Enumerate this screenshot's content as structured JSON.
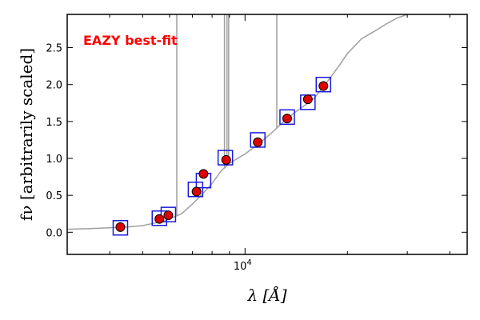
{
  "chart_data": {
    "type": "scatter",
    "x_scale": "log",
    "xlim": [
      3000,
      45000
    ],
    "ylim": [
      -0.3,
      2.95
    ],
    "xlabel": "λ [Å]",
    "ylabel": "fν [arbitrarily scaled]",
    "y_ticks": [
      "0.0",
      "0.5",
      "1.0",
      "1.5",
      "2.0",
      "2.5"
    ],
    "x_tick_labels": [
      {
        "value": 10000,
        "label": "10",
        "exponent": "4"
      }
    ],
    "annotation": {
      "text": "EAZY best-fit",
      "color": "#ff0000"
    },
    "colors": {
      "template": "#a0a0a0",
      "observed": "#dd0000",
      "model": "#1a1adc"
    },
    "template_spectrum": [
      [
        3000,
        0.04
      ],
      [
        3500,
        0.05
      ],
      [
        4000,
        0.06
      ],
      [
        4500,
        0.07
      ],
      [
        5000,
        0.09
      ],
      [
        5500,
        0.13
      ],
      [
        6000,
        0.18
      ],
      [
        6500,
        0.25
      ],
      [
        7000,
        0.38
      ],
      [
        7500,
        0.52
      ],
      [
        8000,
        0.66
      ],
      [
        8500,
        0.83
      ],
      [
        9000,
        0.93
      ],
      [
        9500,
        1.0
      ],
      [
        10000,
        1.06
      ],
      [
        11000,
        1.2
      ],
      [
        12000,
        1.35
      ],
      [
        13000,
        1.5
      ],
      [
        14000,
        1.62
      ],
      [
        15000,
        1.72
      ],
      [
        16000,
        1.82
      ],
      [
        17000,
        1.97
      ],
      [
        18000,
        2.12
      ],
      [
        19000,
        2.27
      ],
      [
        20000,
        2.42
      ],
      [
        22000,
        2.62
      ],
      [
        24000,
        2.72
      ],
      [
        26000,
        2.82
      ],
      [
        28000,
        2.9
      ],
      [
        30000,
        2.95
      ]
    ],
    "emission_lines": [
      {
        "wavelength": 6300,
        "peak": 3.0
      },
      {
        "wavelength": 8700,
        "peak": 3.0
      },
      {
        "wavelength": 8850,
        "peak": 3.0
      },
      {
        "wavelength": 8950,
        "peak": 3.0
      },
      {
        "wavelength": 12400,
        "peak": 3.0
      }
    ],
    "series": [
      {
        "name": "observed",
        "marker": "circle",
        "points": [
          [
            4300,
            0.07
          ],
          [
            5600,
            0.18
          ],
          [
            5950,
            0.23
          ],
          [
            7200,
            0.55
          ],
          [
            7550,
            0.79
          ],
          [
            8800,
            0.98
          ],
          [
            10900,
            1.22
          ],
          [
            13300,
            1.54
          ],
          [
            15300,
            1.8
          ],
          [
            17000,
            1.98
          ]
        ]
      },
      {
        "name": "model",
        "marker": "square",
        "points": [
          [
            4300,
            0.06
          ],
          [
            5600,
            0.19
          ],
          [
            5950,
            0.24
          ],
          [
            7150,
            0.58
          ],
          [
            7550,
            0.7
          ],
          [
            8750,
            1.01
          ],
          [
            10900,
            1.25
          ],
          [
            13300,
            1.56
          ],
          [
            15300,
            1.76
          ],
          [
            17000,
            2.0
          ]
        ]
      }
    ]
  }
}
